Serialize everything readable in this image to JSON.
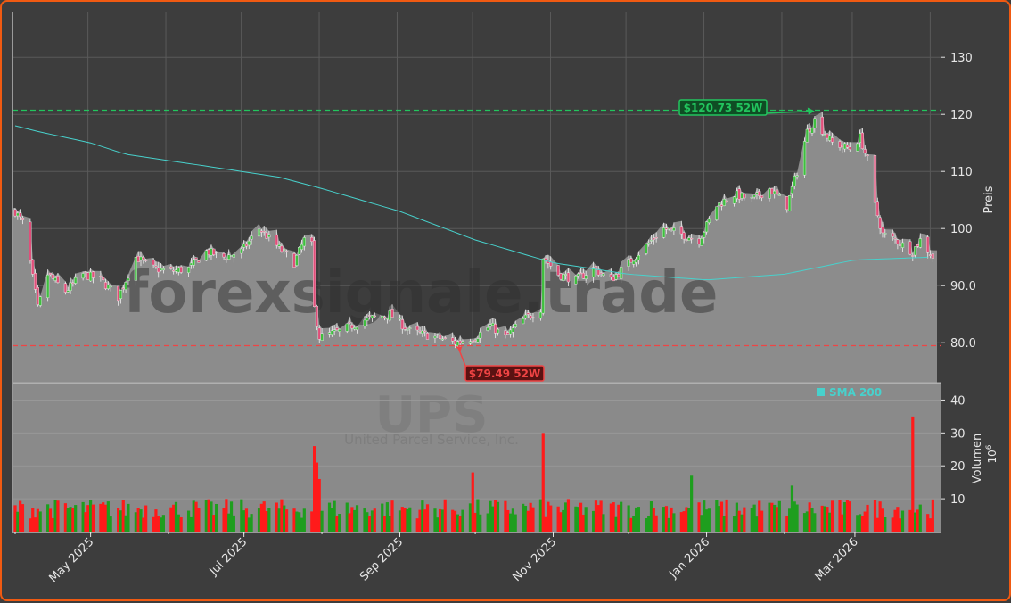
{
  "chart_data": {
    "type": "candlestick",
    "watermark": {
      "brand": "forexsignale.trade",
      "ticker": "UPS",
      "company": "United Parcel Service, Inc."
    },
    "price_axis": {
      "label": "Preis",
      "ylim": [
        73,
        138
      ],
      "ticks": [
        "80.0",
        "90.0",
        "100",
        "110",
        "120",
        "130"
      ],
      "tick_values": [
        80,
        90,
        100,
        110,
        120,
        130
      ]
    },
    "volume_axis": {
      "label": "Volumen",
      "unit": "10",
      "unit_exp": "6",
      "ylim": [
        0,
        45
      ],
      "ticks": [
        "10",
        "20",
        "30",
        "40"
      ],
      "tick_values": [
        10,
        20,
        30,
        40
      ]
    },
    "x_axis": {
      "start": "2025-04-01",
      "end": "2026-04-03",
      "ticks": [
        {
          "date": "2025-05-01",
          "label": "May 2025"
        },
        {
          "date": "2025-07-01",
          "label": "Jul 2025"
        },
        {
          "date": "2025-09-01",
          "label": "Sep 2025"
        },
        {
          "date": "2025-11-01",
          "label": "Nov 2025"
        },
        {
          "date": "2026-01-01",
          "label": "Jan 2026"
        },
        {
          "date": "2026-03-01",
          "label": "Mar 2026"
        }
      ]
    },
    "annotations": {
      "high": {
        "value": 120.73,
        "label": "$120.73 52W",
        "date": "2026-02-13",
        "color": "#22c55e"
      },
      "low": {
        "value": 79.49,
        "label": "$79.49 52W",
        "date": "2025-09-23",
        "color": "#ef4444"
      }
    },
    "legend": {
      "label": "SMA 200",
      "color": "#48d1cc",
      "placement": "top-right of volume panel"
    },
    "price_keypoints": [
      [
        "2025-04-01",
        103
      ],
      [
        "2025-04-04",
        101
      ],
      [
        "2025-04-07",
        94
      ],
      [
        "2025-04-10",
        86
      ],
      [
        "2025-04-14",
        92
      ],
      [
        "2025-04-21",
        89
      ],
      [
        "2025-04-28",
        92
      ],
      [
        "2025-05-05",
        91
      ],
      [
        "2025-05-12",
        88
      ],
      [
        "2025-05-19",
        95
      ],
      [
        "2025-05-26",
        93
      ],
      [
        "2025-06-02",
        92.5
      ],
      [
        "2025-06-09",
        93
      ],
      [
        "2025-06-16",
        96
      ],
      [
        "2025-06-23",
        95
      ],
      [
        "2025-06-30",
        96
      ],
      [
        "2025-07-07",
        100
      ],
      [
        "2025-07-14",
        97
      ],
      [
        "2025-07-21",
        94
      ],
      [
        "2025-07-25",
        98
      ],
      [
        "2025-07-28",
        97
      ],
      [
        "2025-07-29",
        86
      ],
      [
        "2025-07-31",
        81
      ],
      [
        "2025-08-08",
        82
      ],
      [
        "2025-08-18",
        84
      ],
      [
        "2025-08-28",
        85
      ],
      [
        "2025-09-05",
        82
      ],
      [
        "2025-09-15",
        81
      ],
      [
        "2025-09-23",
        80
      ],
      [
        "2025-10-01",
        81
      ],
      [
        "2025-10-07",
        83
      ],
      [
        "2025-10-13",
        81
      ],
      [
        "2025-10-20",
        84
      ],
      [
        "2025-10-27",
        86
      ],
      [
        "2025-10-28",
        95
      ],
      [
        "2025-11-03",
        92
      ],
      [
        "2025-11-10",
        91
      ],
      [
        "2025-11-17",
        93
      ],
      [
        "2025-11-24",
        91
      ],
      [
        "2025-12-01",
        94
      ],
      [
        "2025-12-08",
        97
      ],
      [
        "2025-12-15",
        100
      ],
      [
        "2025-12-22",
        99
      ],
      [
        "2025-12-29",
        98
      ],
      [
        "2026-01-05",
        104
      ],
      [
        "2026-01-12",
        106
      ],
      [
        "2026-01-19",
        105
      ],
      [
        "2026-01-26",
        107
      ],
      [
        "2026-02-02",
        104
      ],
      [
        "2026-02-06",
        110
      ],
      [
        "2026-02-10",
        117
      ],
      [
        "2026-02-13",
        119
      ],
      [
        "2026-02-20",
        115
      ],
      [
        "2026-02-27",
        114
      ],
      [
        "2026-03-03",
        116
      ],
      [
        "2026-03-06",
        112
      ],
      [
        "2026-03-09",
        104
      ],
      [
        "2026-03-12",
        99
      ],
      [
        "2026-03-17",
        98
      ],
      [
        "2026-03-24",
        96
      ],
      [
        "2026-03-27",
        98
      ],
      [
        "2026-04-01",
        95
      ]
    ],
    "sma200": [
      [
        "2025-04-01",
        118
      ],
      [
        "2025-04-10",
        117
      ],
      [
        "2025-05-01",
        115
      ],
      [
        "2025-05-15",
        113
      ],
      [
        "2025-06-15",
        111
      ],
      [
        "2025-07-15",
        109
      ],
      [
        "2025-08-01",
        107
      ],
      [
        "2025-09-01",
        103
      ],
      [
        "2025-10-01",
        98
      ],
      [
        "2025-11-01",
        94
      ],
      [
        "2025-12-01",
        92
      ],
      [
        "2026-01-01",
        91
      ],
      [
        "2026-02-01",
        92
      ],
      [
        "2026-03-01",
        94.5
      ],
      [
        "2026-04-01",
        95
      ]
    ],
    "volume_spikes": [
      [
        "2025-07-29",
        26,
        "down"
      ],
      [
        "2025-07-30",
        21,
        "down"
      ],
      [
        "2025-07-31",
        16,
        "down"
      ],
      [
        "2025-09-30",
        18,
        "down"
      ],
      [
        "2025-10-28",
        30,
        "down"
      ],
      [
        "2025-12-26",
        17,
        "up"
      ],
      [
        "2026-02-04",
        14,
        "up"
      ],
      [
        "2026-03-24",
        35,
        "down"
      ]
    ],
    "up_color": "#1e9e1e",
    "down_color": "#ff1a1a"
  }
}
